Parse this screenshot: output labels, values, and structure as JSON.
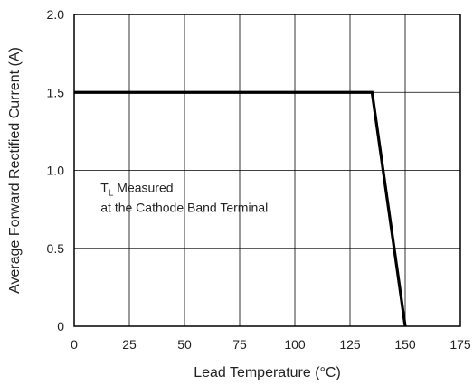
{
  "chart_data": {
    "type": "line",
    "xlabel": "Lead Temperature (°C)",
    "ylabel": "Average Forward Rectified Current (A)",
    "xlim": [
      0,
      175
    ],
    "ylim": [
      0,
      2.0
    ],
    "xticks": [
      0,
      25,
      50,
      75,
      100,
      125,
      150,
      175
    ],
    "yticks": [
      0,
      0.5,
      1.0,
      1.5,
      2.0
    ],
    "xtick_labels": [
      "0",
      "25",
      "50",
      "75",
      "100",
      "125",
      "150",
      "175"
    ],
    "ytick_labels": [
      "0",
      "0.5",
      "1.0",
      "1.5",
      "2.0"
    ],
    "grid": true,
    "series": [
      {
        "x": [
          0,
          135,
          150
        ],
        "y": [
          1.5,
          1.5,
          0
        ],
        "color": "#000000"
      }
    ],
    "annotation": {
      "line1_main": "T",
      "line1_sub": "L",
      "line1_rest": " Measured",
      "line2": "at the Cathode Band Terminal",
      "x": 12,
      "y": 0.86
    }
  }
}
